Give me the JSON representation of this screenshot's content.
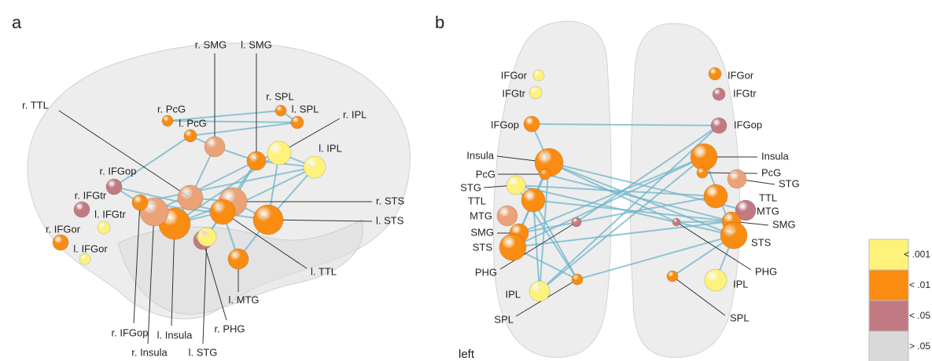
{
  "panels": [
    {
      "letter": "a",
      "labels": [
        "r. SMG",
        "l. SMG",
        "r. SPL",
        "l. SPL",
        "r. PcG",
        "l. PcG",
        "r. IPL",
        "l. IPL",
        "r. TTL",
        "r. IFGop",
        "r. IFGtr",
        "l. IFGtr",
        "r. IFGor",
        "l. IFGor",
        "r. STS",
        "l. STS",
        "l. TTL",
        "l. MTG",
        "r. PHG",
        "l. STG",
        "l. Insula",
        "r. Insula",
        "r. IFGop"
      ]
    },
    {
      "letter": "b",
      "caption": "left",
      "labels": [
        "IFGor",
        "IFGtr",
        "IFGop",
        "Insula",
        "PcG",
        "STG",
        "TTL",
        "MTG",
        "SMG",
        "STS",
        "PHG",
        "IPL",
        "SPL",
        "IFGor",
        "IFGtr",
        "IFGop",
        "Insula",
        "PcG",
        "STG",
        "TTL",
        "MTG",
        "SMG",
        "STS",
        "PHG",
        "IPL",
        "SPL"
      ]
    }
  ],
  "legend": [
    {
      "label": "< .001",
      "color": "#fff27a"
    },
    {
      "label": "< .01",
      "color": "#fa8c12"
    },
    {
      "label": "< .05",
      "color": "#c27a82"
    },
    {
      "label": "> .05",
      "color": "#d9d9d9"
    }
  ]
}
